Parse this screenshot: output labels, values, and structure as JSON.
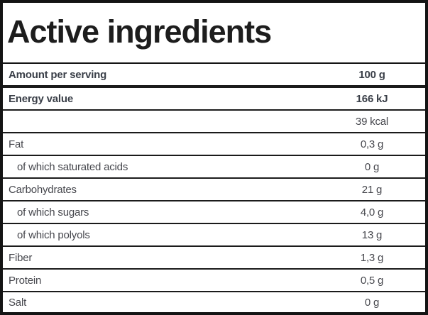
{
  "title": "Active ingredients",
  "colors": {
    "background": "#ffffff",
    "border": "#141414",
    "title_text": "#1d1d1d",
    "bold_row_text": "#3a3f48",
    "regular_row_text": "#46474d"
  },
  "table": {
    "rows": [
      {
        "label": "Amount per serving",
        "value": "100 g",
        "bold": true,
        "indent": false
      },
      {
        "label": "Energy value",
        "value": "166 kJ",
        "bold": true,
        "indent": false
      },
      {
        "label": "",
        "value": "39 kcal",
        "bold": false,
        "indent": false
      },
      {
        "label": "Fat",
        "value": "0,3 g",
        "bold": false,
        "indent": false
      },
      {
        "label": "of which saturated acids",
        "value": "0 g",
        "bold": false,
        "indent": true
      },
      {
        "label": "Carbohydrates",
        "value": "21 g",
        "bold": false,
        "indent": false
      },
      {
        "label": "of which sugars",
        "value": "4,0 g",
        "bold": false,
        "indent": true
      },
      {
        "label": "of which polyols",
        "value": "13 g",
        "bold": false,
        "indent": true
      },
      {
        "label": "Fiber",
        "value": "1,3 g",
        "bold": false,
        "indent": false
      },
      {
        "label": "Protein",
        "value": "0,5 g",
        "bold": false,
        "indent": false
      },
      {
        "label": "Salt",
        "value": "0 g",
        "bold": false,
        "indent": false
      }
    ]
  }
}
